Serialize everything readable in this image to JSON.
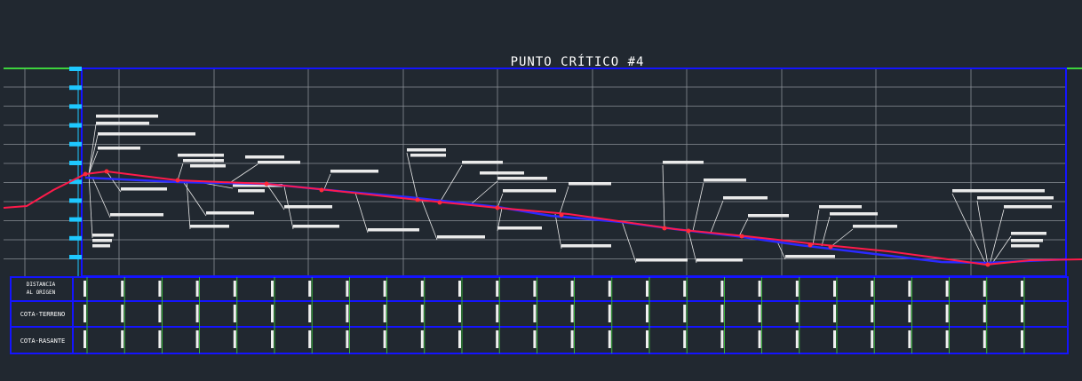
{
  "drawing": {
    "title": "PUNTO CRÍTICO #4",
    "row_labels": [
      "DISTANCIA AL ORIGEN",
      "COTA-TERRENO",
      "COTA-RASANTE"
    ],
    "colors": {
      "background": "#212830",
      "frame": "#1414ff",
      "grid": "#b4b4b4",
      "terrain": "#ff1a4a",
      "rasante": "#2a2aff",
      "ground_line": "#3dd23d",
      "markers": "#1ec8ff",
      "annotations": "#ffffff"
    }
  }
}
